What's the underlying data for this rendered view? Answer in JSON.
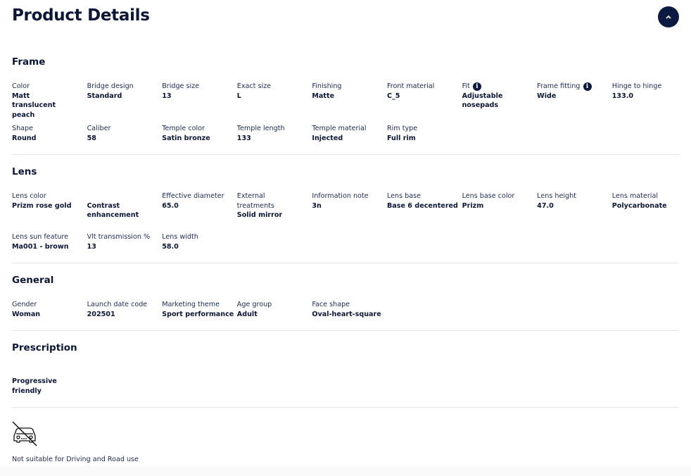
{
  "header": {
    "title": "Product Details",
    "collapse_icon": "chevron-up-icon",
    "accent": "#0b1a40"
  },
  "sections": [
    {
      "title": "Frame",
      "items": [
        {
          "label": "Color",
          "value": "Matt translucent peach"
        },
        {
          "label": "Bridge design",
          "value": "Standard"
        },
        {
          "label": "Bridge size",
          "value": "13"
        },
        {
          "label": "Exact size",
          "value": "L"
        },
        {
          "label": "Finishing",
          "value": "Matte"
        },
        {
          "label": "Front material",
          "value": "C_5"
        },
        {
          "label": "Fit",
          "value": "Adjustable nosepads",
          "info": true
        },
        {
          "label": "Frame fitting",
          "value": "Wide",
          "info": true
        },
        {
          "label": "Hinge to hinge",
          "value": "133.0"
        },
        {
          "label": "Shape",
          "value": "Round"
        },
        {
          "label": "Caliber",
          "value": "58"
        },
        {
          "label": "Temple color",
          "value": "Satin bronze"
        },
        {
          "label": "Temple length",
          "value": "133"
        },
        {
          "label": "Temple material",
          "value": "Injected"
        },
        {
          "label": "Rim type",
          "value": "Full rim"
        }
      ]
    },
    {
      "title": "Lens",
      "items": [
        {
          "label": "Lens color",
          "value": "Prizm rose gold"
        },
        {
          "label": "",
          "value": "Contrast enhancement"
        },
        {
          "label": "Effective diameter",
          "value": "65.0"
        },
        {
          "label": "External treatments",
          "value": "Solid mirror"
        },
        {
          "label": "Information note",
          "value": "3n"
        },
        {
          "label": "Lens base",
          "value": "Base 6 decentered"
        },
        {
          "label": "Lens base color",
          "value": "Prizm"
        },
        {
          "label": "Lens height",
          "value": "47.0"
        },
        {
          "label": "Lens material",
          "value": "Polycarbonate"
        },
        {
          "label": "Lens sun feature",
          "value": "Ma001 - brown"
        },
        {
          "label": "Vlt transmission %",
          "value": "13"
        },
        {
          "label": "Lens width",
          "value": "58.0"
        }
      ]
    },
    {
      "title": "General",
      "items": [
        {
          "label": "Gender",
          "value": "Woman"
        },
        {
          "label": "Launch date code",
          "value": "202501"
        },
        {
          "label": "Marketing theme",
          "value": "Sport performance"
        },
        {
          "label": "Age group",
          "value": "Adult"
        },
        {
          "label": "Face shape",
          "value": "Oval-heart-square"
        }
      ]
    },
    {
      "title": "Prescription",
      "items": [
        {
          "label": "",
          "value": "Progressive friendly"
        }
      ]
    }
  ],
  "footer": {
    "icon": "no-driving-car-icon",
    "note": "Not suitable for Driving and Road use"
  }
}
